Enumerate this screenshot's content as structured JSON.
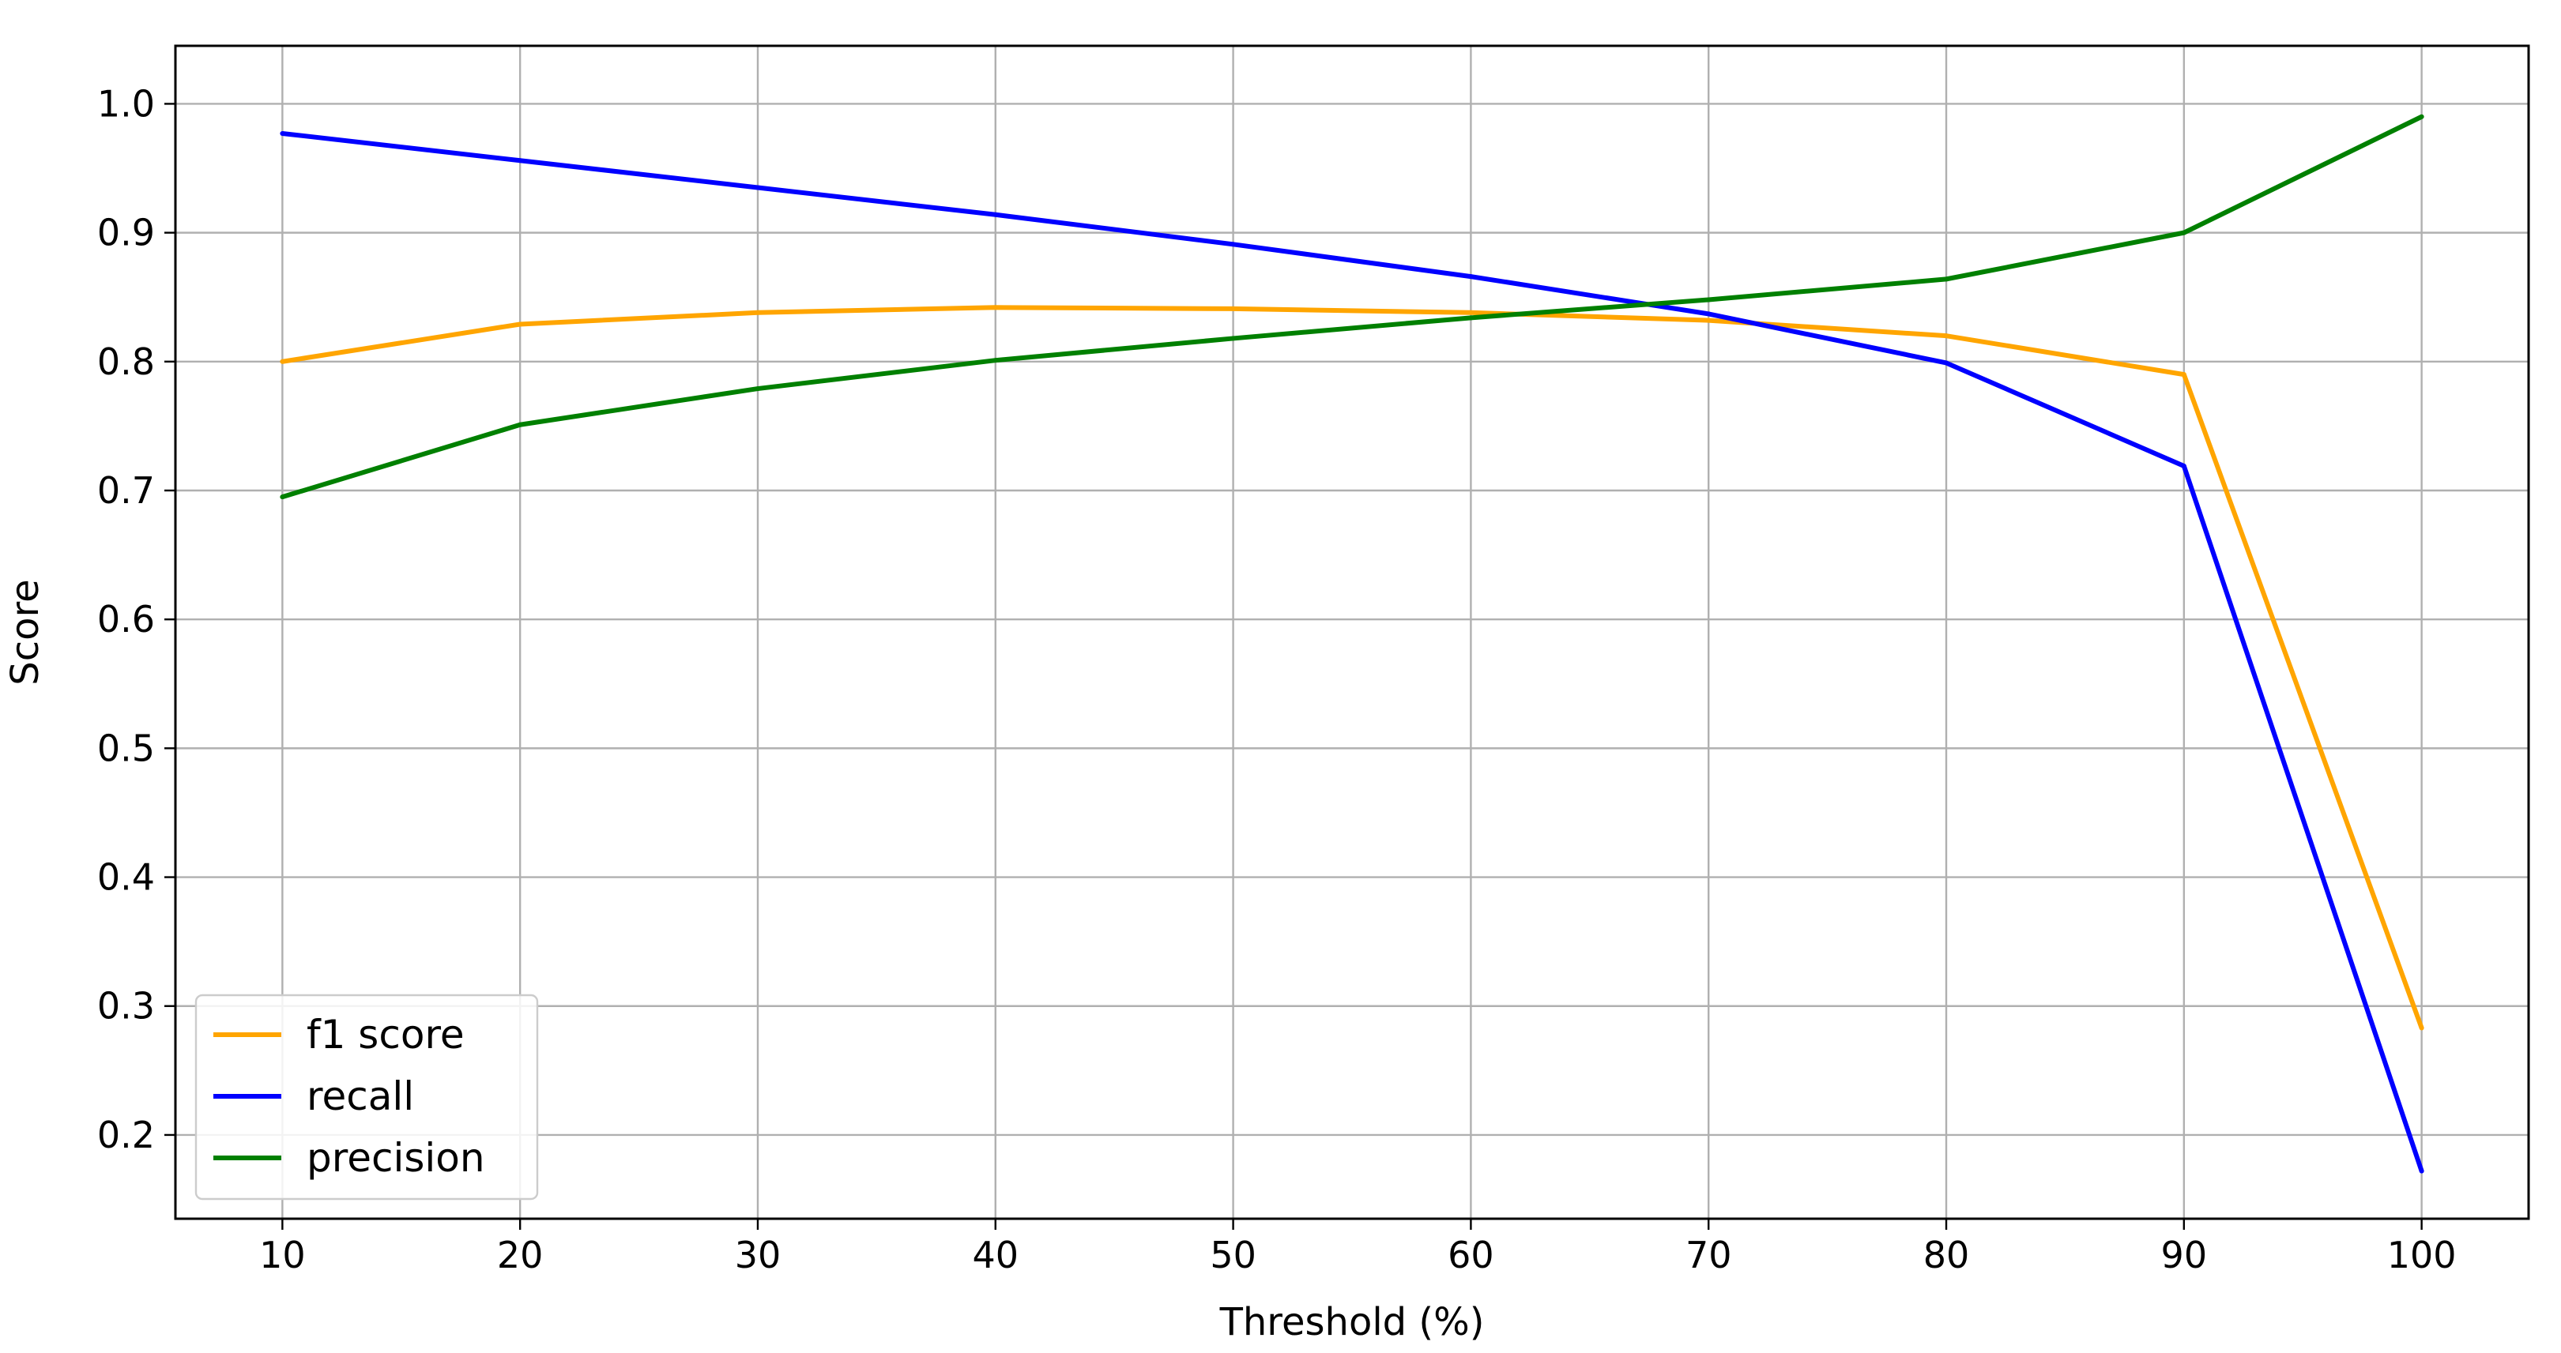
{
  "chart_data": {
    "type": "line",
    "title": "",
    "xlabel": "Threshold (%)",
    "ylabel": "Score",
    "x": [
      10,
      20,
      30,
      40,
      50,
      60,
      70,
      80,
      90,
      100
    ],
    "xlim": [
      5.5,
      104.5
    ],
    "ylim": [
      0.135,
      1.045
    ],
    "xticks": [
      "10",
      "20",
      "30",
      "40",
      "50",
      "60",
      "70",
      "80",
      "90",
      "100"
    ],
    "yticks": [
      "0.2",
      "0.3",
      "0.4",
      "0.5",
      "0.6",
      "0.7",
      "0.8",
      "0.9",
      "1.0"
    ],
    "grid": true,
    "legend_position": "lower-left",
    "series": [
      {
        "name": "f1 score",
        "color": "#ffa500",
        "values": [
          0.8,
          0.829,
          0.838,
          0.842,
          0.841,
          0.838,
          0.832,
          0.82,
          0.79,
          0.283
        ]
      },
      {
        "name": "recall",
        "color": "#0000ff",
        "values": [
          0.977,
          0.956,
          0.935,
          0.914,
          0.891,
          0.866,
          0.837,
          0.799,
          0.719,
          0.172
        ]
      },
      {
        "name": "precision",
        "color": "#008000",
        "values": [
          0.695,
          0.751,
          0.779,
          0.801,
          0.818,
          0.834,
          0.848,
          0.864,
          0.9,
          0.99
        ]
      }
    ]
  }
}
